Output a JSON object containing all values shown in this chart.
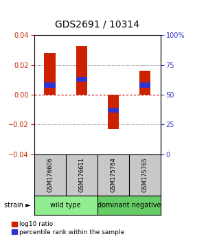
{
  "title": "GDS2691 / 10314",
  "samples": [
    "GSM176606",
    "GSM176611",
    "GSM175764",
    "GSM175765"
  ],
  "log10_values": [
    0.028,
    0.033,
    -0.023,
    0.016
  ],
  "percentile_display": [
    58,
    63,
    37,
    58
  ],
  "ylim": [
    -0.04,
    0.04
  ],
  "y2lim": [
    0,
    100
  ],
  "y_ticks": [
    -0.04,
    -0.02,
    0,
    0.02,
    0.04
  ],
  "y2_ticks": [
    0,
    25,
    50,
    75,
    100
  ],
  "groups": [
    {
      "label": "wild type",
      "samples": [
        0,
        1
      ],
      "color": "#90EE90"
    },
    {
      "label": "dominant negative",
      "samples": [
        2,
        3
      ],
      "color": "#66CC66"
    }
  ],
  "sample_box_color": "#C8C8C8",
  "red_color": "#CC2200",
  "blue_color": "#3333CC",
  "dotted_line_color": "#555555",
  "zero_line_color": "#CC0000",
  "bg_color": "#FFFFFF",
  "legend_red_label": "log10 ratio",
  "legend_blue_label": "percentile rank within the sample",
  "title_fontsize": 10,
  "tick_fontsize": 7,
  "sample_fontsize": 6,
  "group_fontsize": 7,
  "legend_fontsize": 6.5
}
